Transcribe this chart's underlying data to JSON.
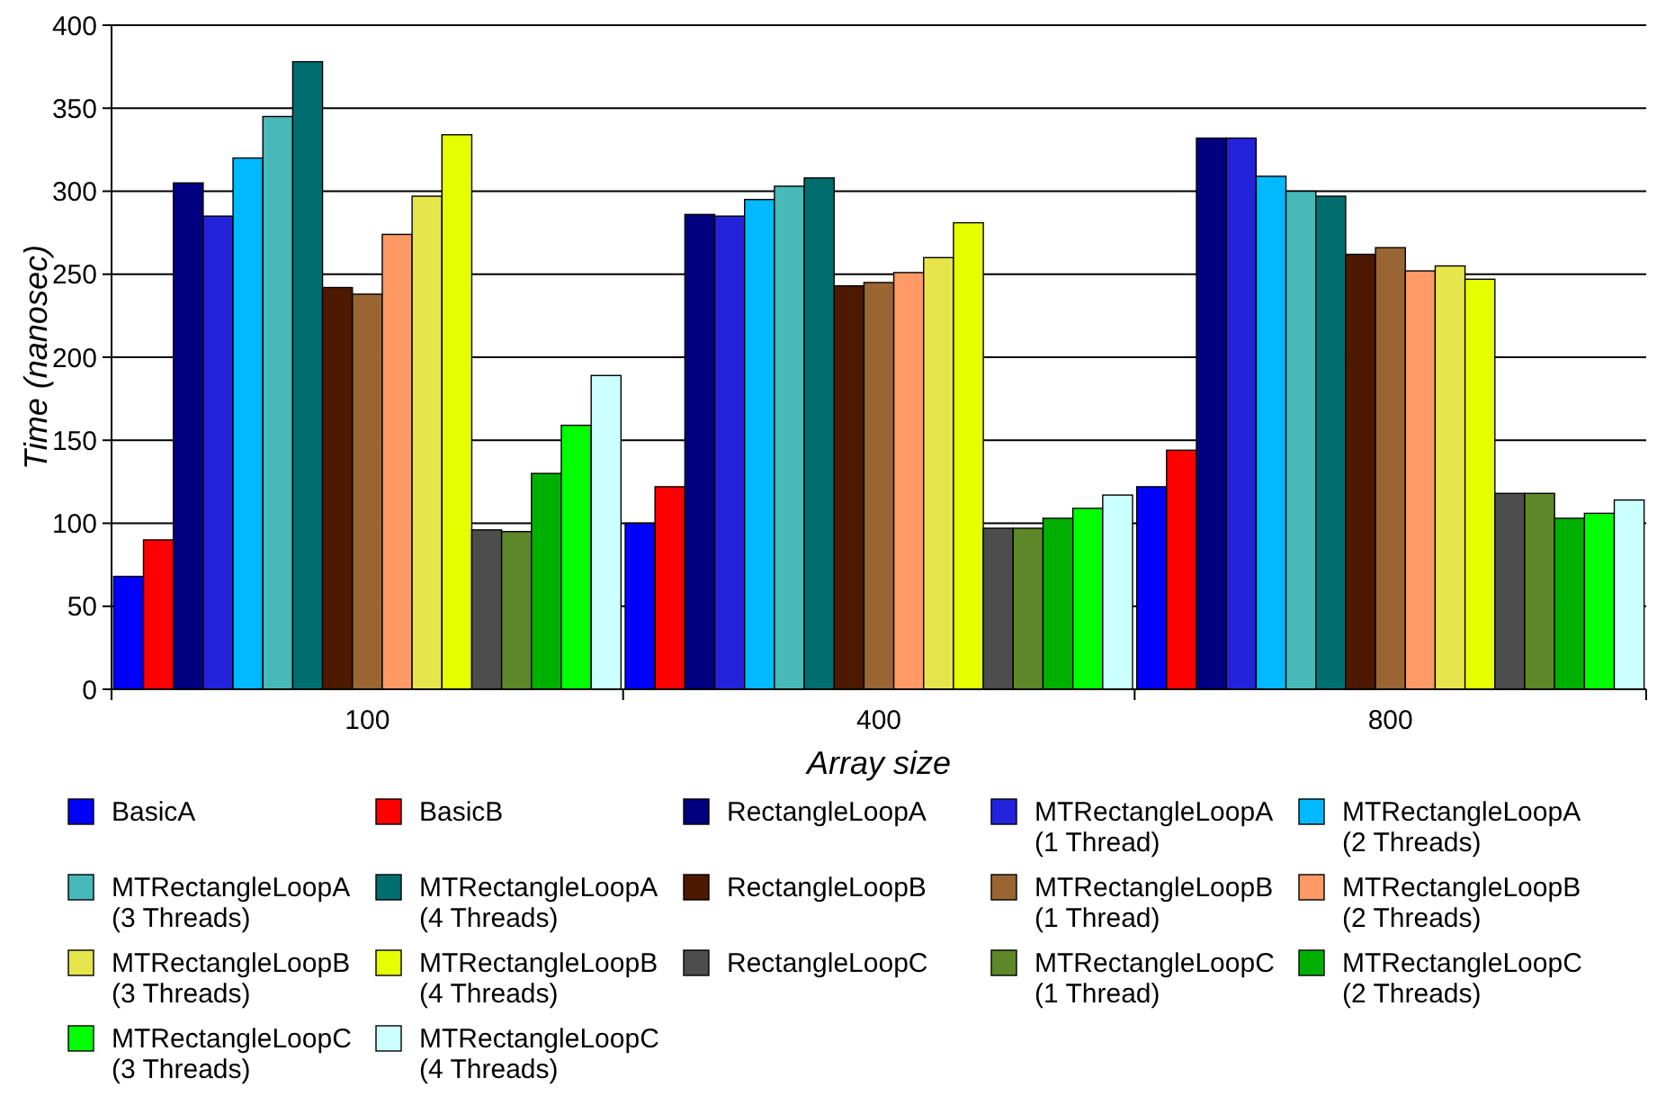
{
  "chart_data": {
    "type": "bar",
    "xlabel": "Array size",
    "ylabel": "Time (nanosec)",
    "categories": [
      "100",
      "400",
      "800"
    ],
    "ylim": [
      0,
      400
    ],
    "yticks": [
      0,
      50,
      100,
      150,
      200,
      250,
      300,
      350,
      400
    ],
    "grid": "y",
    "legend": "bottom",
    "series": [
      {
        "name": "BasicA",
        "color": "#0000ff",
        "values": [
          68,
          100,
          122
        ]
      },
      {
        "name": "BasicB",
        "color": "#ff0000",
        "values": [
          90,
          122,
          144
        ]
      },
      {
        "name": "RectangleLoopA",
        "color": "#000080",
        "values": [
          305,
          286,
          332
        ]
      },
      {
        "name": "MTRectangleLoopA\n(1 Thread)",
        "color": "#2323dc",
        "values": [
          285,
          285,
          332
        ]
      },
      {
        "name": "MTRectangleLoopA\n(2 Threads)",
        "color": "#00b9ff",
        "values": [
          320,
          295,
          309
        ]
      },
      {
        "name": "MTRectangleLoopA\n(3 Threads)",
        "color": "#48b9b9",
        "values": [
          345,
          303,
          300
        ]
      },
      {
        "name": "MTRectangleLoopA\n(4 Threads)",
        "color": "#006e6e",
        "values": [
          378,
          308,
          297
        ]
      },
      {
        "name": "RectangleLoopB",
        "color": "#4d1900",
        "values": [
          242,
          243,
          262
        ]
      },
      {
        "name": "MTRectangleLoopB\n(1 Thread)",
        "color": "#996633",
        "values": [
          238,
          245,
          266
        ]
      },
      {
        "name": "MTRectangleLoopB\n(2 Threads)",
        "color": "#ff9966",
        "values": [
          274,
          251,
          252
        ]
      },
      {
        "name": "MTRectangleLoopB\n(3 Threads)",
        "color": "#e6e64c",
        "values": [
          297,
          260,
          255
        ]
      },
      {
        "name": "MTRectangleLoopB\n(4 Threads)",
        "color": "#e6ff00",
        "values": [
          334,
          281,
          247
        ]
      },
      {
        "name": "RectangleLoopC",
        "color": "#4d4d4d",
        "values": [
          96,
          97,
          118
        ]
      },
      {
        "name": "MTRectangleLoopC\n(1 Thread)",
        "color": "#5e8729",
        "values": [
          95,
          97,
          118
        ]
      },
      {
        "name": "MTRectangleLoopC\n(2 Threads)",
        "color": "#00b000",
        "values": [
          130,
          103,
          103
        ]
      },
      {
        "name": "MTRectangleLoopC\n(3 Threads)",
        "color": "#00ff00",
        "values": [
          159,
          109,
          106
        ]
      },
      {
        "name": "MTRectangleLoopC\n(4 Threads)",
        "color": "#ccffff",
        "values": [
          189,
          117,
          114
        ]
      }
    ]
  }
}
